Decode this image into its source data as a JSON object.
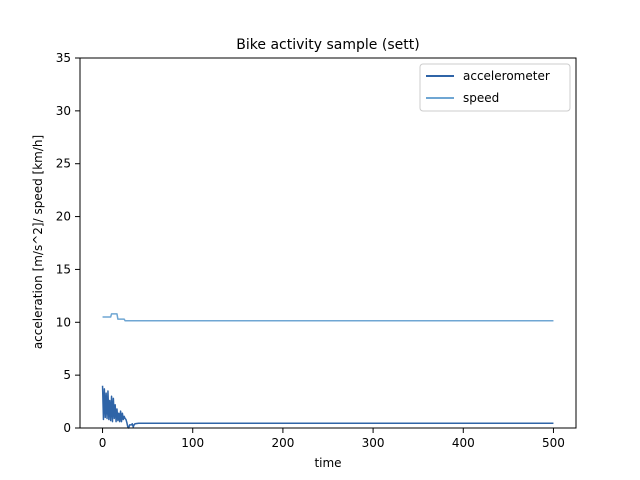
{
  "chart_data": {
    "type": "line",
    "title": "Bike activity sample (sett)",
    "xlabel": "time",
    "ylabel": "acceleration [m/s^2]/ speed [km/h]",
    "xlim": [
      -25,
      525
    ],
    "ylim": [
      0,
      35
    ],
    "x_ticks": [
      0,
      100,
      200,
      300,
      400,
      500
    ],
    "y_ticks": [
      0,
      5,
      10,
      15,
      20,
      25,
      30,
      35
    ],
    "grid": false,
    "legend_position": "top-right",
    "series": [
      {
        "name": "accelerometer",
        "color": "#2f64a7",
        "points": [
          [
            0,
            4.0
          ],
          [
            1,
            0.8
          ],
          [
            2,
            3.7
          ],
          [
            3,
            1.0
          ],
          [
            4,
            3.3
          ],
          [
            5,
            0.9
          ],
          [
            6,
            3.5
          ],
          [
            7,
            0.8
          ],
          [
            8,
            2.6
          ],
          [
            9,
            0.7
          ],
          [
            10,
            3.0
          ],
          [
            11,
            0.6
          ],
          [
            12,
            2.8
          ],
          [
            13,
            0.9
          ],
          [
            14,
            2.2
          ],
          [
            15,
            0.6
          ],
          [
            16,
            1.8
          ],
          [
            17,
            0.7
          ],
          [
            18,
            1.4
          ],
          [
            19,
            0.6
          ],
          [
            20,
            1.6
          ],
          [
            21,
            0.6
          ],
          [
            22,
            1.4
          ],
          [
            23,
            0.8
          ],
          [
            24,
            1.1
          ],
          [
            25,
            0.9
          ],
          [
            26,
            0.8
          ],
          [
            27,
            0.5
          ],
          [
            28,
            0.1
          ],
          [
            29,
            0.0
          ],
          [
            30,
            0.3
          ],
          [
            32,
            0.3
          ],
          [
            33,
            0.4
          ],
          [
            34,
            0.1
          ],
          [
            35,
            0.3
          ],
          [
            36,
            0.4
          ],
          [
            40,
            0.45
          ],
          [
            500,
            0.45
          ]
        ]
      },
      {
        "name": "speed",
        "color": "#6fa6d3",
        "points": [
          [
            0,
            10.5
          ],
          [
            9,
            10.5
          ],
          [
            10,
            10.8
          ],
          [
            16,
            10.8
          ],
          [
            17,
            10.3
          ],
          [
            24,
            10.3
          ],
          [
            25,
            10.15
          ],
          [
            500,
            10.15
          ]
        ]
      }
    ]
  }
}
